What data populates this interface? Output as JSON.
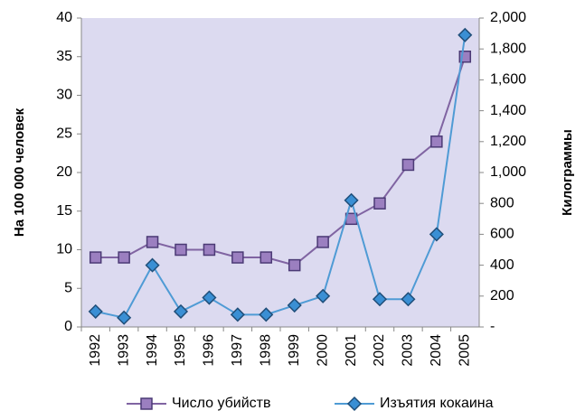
{
  "chart_data": {
    "type": "line",
    "y_label": "На 100 000 человек",
    "y2_label": "Килограммы",
    "categories": [
      "1992",
      "1993",
      "1994",
      "1995",
      "1996",
      "1997",
      "1998",
      "1999",
      "2000",
      "2001",
      "2002",
      "2003",
      "2004",
      "2005"
    ],
    "series": [
      {
        "name": "Число убийств",
        "color": "#8064a2",
        "marker": "square",
        "values": [
          9,
          9,
          11,
          10,
          10,
          9,
          9,
          8,
          11,
          14,
          16,
          21,
          24,
          35
        ]
      },
      {
        "name": "Изъятия кокаина",
        "color": "#4f9bd5",
        "marker": "diamond",
        "axis": "y2",
        "values": [
          100,
          60,
          400,
          100,
          190,
          80,
          80,
          140,
          200,
          820,
          180,
          180,
          600,
          1890
        ]
      }
    ],
    "ylim": [
      0,
      40
    ],
    "yticks": [
      0,
      5,
      10,
      15,
      20,
      25,
      30,
      35,
      40
    ],
    "y2lim": [
      0,
      2000
    ],
    "y2ticks": [
      {
        "value": 0,
        "label": "-"
      },
      200,
      400,
      600,
      800,
      {
        "value": 1000,
        "label": "1,000"
      },
      {
        "value": 1200,
        "label": "1,200"
      },
      {
        "value": 1400,
        "label": "1,400"
      },
      {
        "value": 1600,
        "label": "1,600"
      },
      {
        "value": 1800,
        "label": "1,800"
      },
      {
        "value": 2000,
        "label": "2,000"
      }
    ],
    "legend": "bottom"
  }
}
